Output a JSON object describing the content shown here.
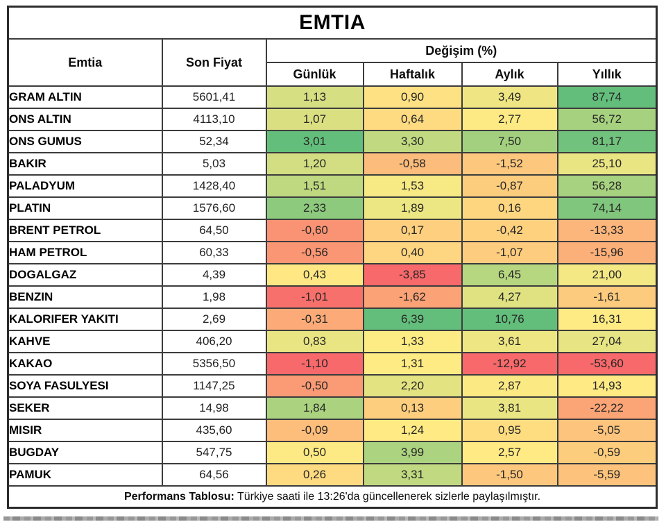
{
  "title": "EMTIA",
  "columns": {
    "emtia": "Emtia",
    "son_fiyat": "Son Fiyat",
    "degisim": "Değişim (%)",
    "periods": [
      "Günlük",
      "Haftalık",
      "Aylık",
      "Yıllık"
    ]
  },
  "footer": {
    "bold": "Performans Tablosu:",
    "rest": " Türkiye saati ile 13:26'da güncellenerek sizlerle paylaşılmıştır."
  },
  "heatmap": {
    "min_color": "#F8696B",
    "mid_color": "#FFEB84",
    "max_color": "#63BE7B",
    "note": "per-column 3-color scale, midpoint at column median"
  },
  "chart_data": {
    "type": "table",
    "title": "EMTIA",
    "columns": [
      "Emtia",
      "Son Fiyat",
      "Günlük",
      "Haftalık",
      "Aylık",
      "Yıllık"
    ],
    "rows": [
      {
        "name": "GRAM ALTIN",
        "price": "5601,41",
        "changes": [
          "1,13",
          "0,90",
          "3,49",
          "87,74"
        ]
      },
      {
        "name": "ONS ALTIN",
        "price": "4113,10",
        "changes": [
          "1,07",
          "0,64",
          "2,77",
          "56,72"
        ]
      },
      {
        "name": "ONS GUMUS",
        "price": "52,34",
        "changes": [
          "3,01",
          "3,30",
          "7,50",
          "81,17"
        ]
      },
      {
        "name": "BAKIR",
        "price": "5,03",
        "changes": [
          "1,20",
          "-0,58",
          "-1,52",
          "25,10"
        ]
      },
      {
        "name": "PALADYUM",
        "price": "1428,40",
        "changes": [
          "1,51",
          "1,53",
          "-0,87",
          "56,28"
        ]
      },
      {
        "name": "PLATIN",
        "price": "1576,60",
        "changes": [
          "2,33",
          "1,89",
          "0,16",
          "74,14"
        ]
      },
      {
        "name": "BRENT PETROL",
        "price": "64,50",
        "changes": [
          "-0,60",
          "0,17",
          "-0,42",
          "-13,33"
        ]
      },
      {
        "name": "HAM PETROL",
        "price": "60,33",
        "changes": [
          "-0,56",
          "0,40",
          "-1,07",
          "-15,96"
        ]
      },
      {
        "name": "DOGALGAZ",
        "price": "4,39",
        "changes": [
          "0,43",
          "-3,85",
          "6,45",
          "21,00"
        ]
      },
      {
        "name": "BENZIN",
        "price": "1,98",
        "changes": [
          "-1,01",
          "-1,62",
          "4,27",
          "-1,61"
        ]
      },
      {
        "name": "KALORIFER YAKITI",
        "price": "2,69",
        "changes": [
          "-0,31",
          "6,39",
          "10,76",
          "16,31"
        ]
      },
      {
        "name": "KAHVE",
        "price": "406,20",
        "changes": [
          "0,83",
          "1,33",
          "3,61",
          "27,04"
        ]
      },
      {
        "name": "KAKAO",
        "price": "5356,50",
        "changes": [
          "-1,10",
          "1,31",
          "-12,92",
          "-53,60"
        ]
      },
      {
        "name": "SOYA FASULYESI",
        "price": "1147,25",
        "changes": [
          "-0,50",
          "2,20",
          "2,87",
          "14,93"
        ]
      },
      {
        "name": "SEKER",
        "price": "14,98",
        "changes": [
          "1,84",
          "0,13",
          "3,81",
          "-22,22"
        ]
      },
      {
        "name": "MISIR",
        "price": "435,60",
        "changes": [
          "-0,09",
          "1,24",
          "0,95",
          "-5,05"
        ]
      },
      {
        "name": "BUGDAY",
        "price": "547,75",
        "changes": [
          "0,50",
          "3,99",
          "2,57",
          "-0,59"
        ]
      },
      {
        "name": "PAMUK",
        "price": "64,56",
        "changes": [
          "0,26",
          "3,31",
          "-1,50",
          "-5,59"
        ]
      }
    ]
  }
}
